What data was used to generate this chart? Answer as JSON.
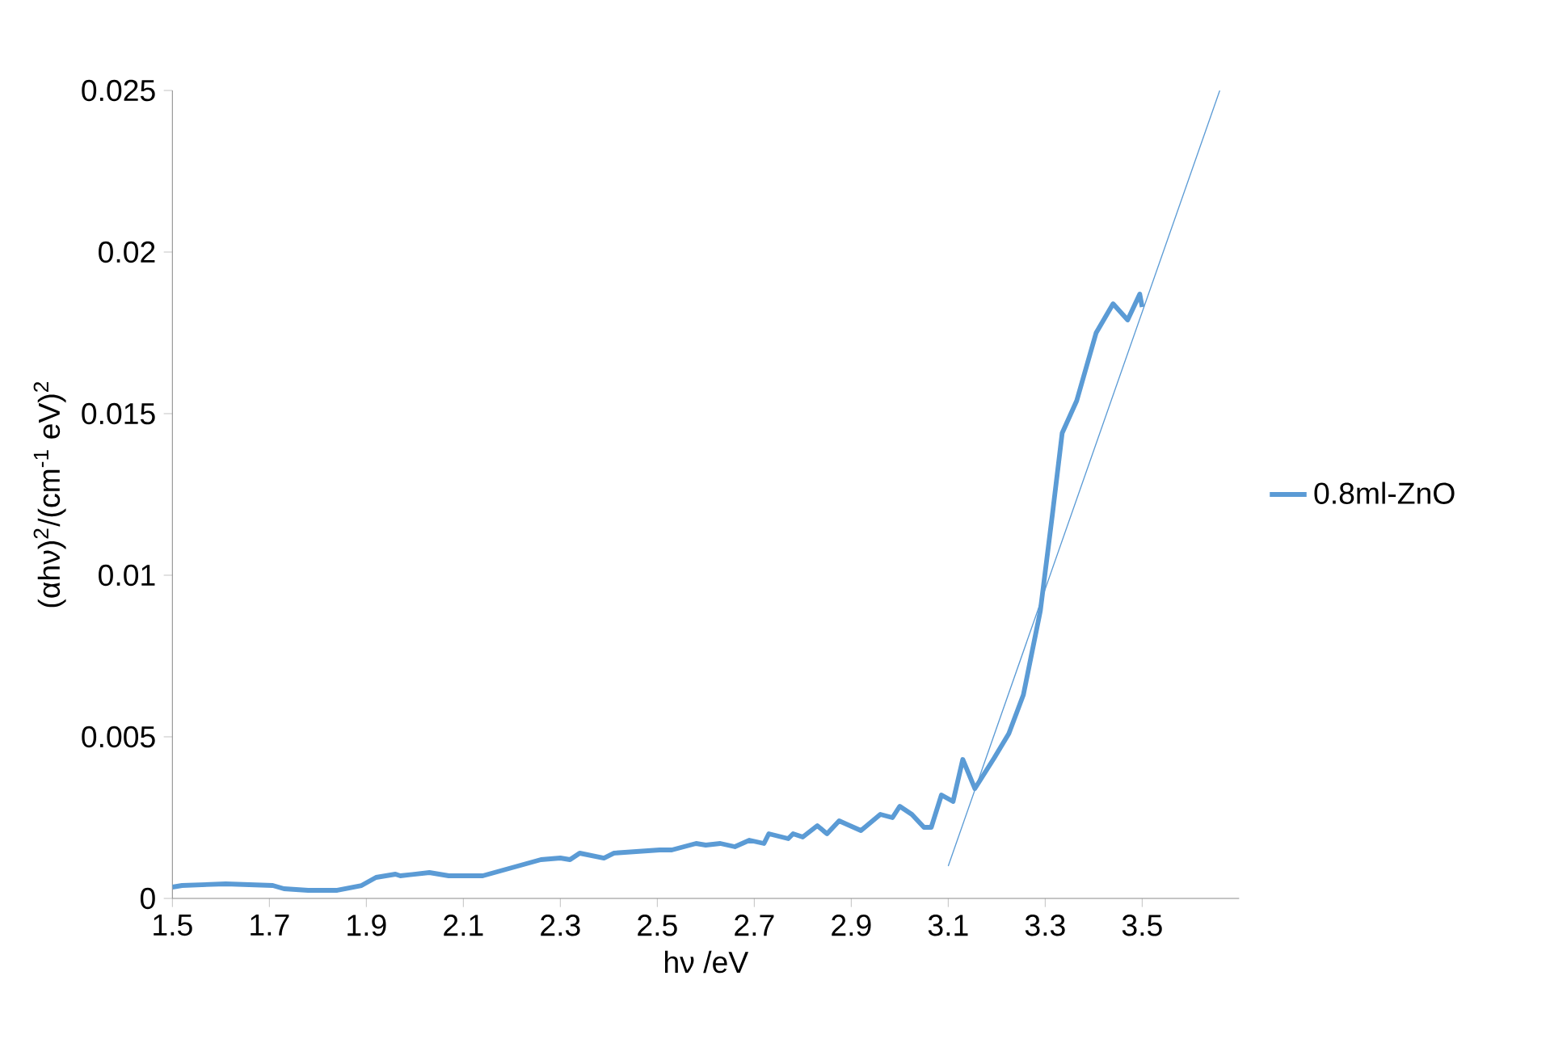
{
  "chart_data": {
    "type": "line",
    "xlabel": "hν /eV",
    "ylabel": "(αhν)$^{2}$/(cm$^{-1}$ eV)$^{2}$",
    "xlim": [
      1.5,
      3.7
    ],
    "ylim": [
      0,
      0.025
    ],
    "xticks": [
      1.5,
      1.7,
      1.9,
      2.1,
      2.3,
      2.5,
      2.7,
      2.9,
      3.1,
      3.3,
      3.5
    ],
    "yticks": [
      0,
      0.005,
      0.01,
      0.015,
      0.02,
      0.025
    ],
    "grid": false,
    "legend": "right",
    "marker": "none",
    "series": [
      {
        "name": "0.8ml-ZnO",
        "color": "#5b9bd5",
        "x": [
          1.5,
          1.52,
          1.61,
          1.707,
          1.73,
          1.78,
          1.84,
          1.89,
          1.92,
          1.96,
          1.97,
          2.03,
          2.07,
          2.14,
          2.26,
          2.3,
          2.32,
          2.34,
          2.39,
          2.41,
          2.505,
          2.53,
          2.58,
          2.6,
          2.63,
          2.66,
          2.69,
          2.72,
          2.73,
          2.77,
          2.78,
          2.8,
          2.83,
          2.85,
          2.875,
          2.92,
          2.96,
          2.985,
          3.0,
          3.025,
          3.05,
          3.065,
          3.086,
          3.11,
          3.13,
          3.155,
          3.195,
          3.225,
          3.255,
          3.29,
          3.315,
          3.335,
          3.365,
          3.405,
          3.44,
          3.47,
          3.495,
          3.5
        ],
        "values": [
          0.00035,
          0.0004,
          0.00045,
          0.0004,
          0.0003,
          0.00025,
          0.00025,
          0.0004,
          0.00065,
          0.00075,
          0.0007,
          0.0008,
          0.0007,
          0.0007,
          0.0012,
          0.00125,
          0.0012,
          0.0014,
          0.00125,
          0.0014,
          0.0015,
          0.0015,
          0.0017,
          0.00165,
          0.0017,
          0.0016,
          0.0018,
          0.0017,
          0.002,
          0.00185,
          0.002,
          0.0019,
          0.00225,
          0.002,
          0.0024,
          0.0021,
          0.0026,
          0.0025,
          0.00285,
          0.0026,
          0.0022,
          0.0022,
          0.0032,
          0.003,
          0.0043,
          0.0034,
          0.00435,
          0.0051,
          0.0063,
          0.0089,
          0.0119,
          0.0144,
          0.0154,
          0.0175,
          0.0184,
          0.0179,
          0.0187,
          0.0183
        ]
      },
      {
        "type": "line",
        "color": "#5b9bd5",
        "x": [
          3.1,
          3.66
        ],
        "values": [
          0.001,
          0.025
        ]
      }
    ]
  }
}
